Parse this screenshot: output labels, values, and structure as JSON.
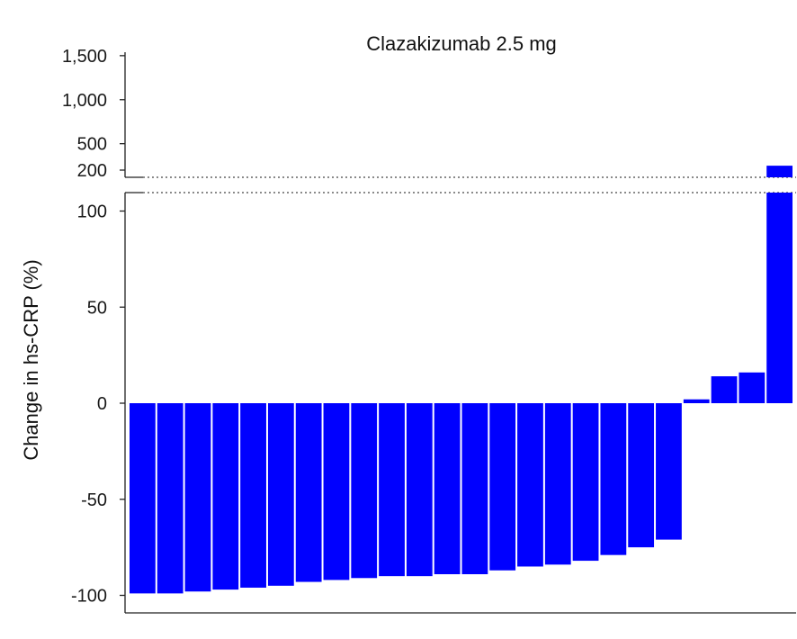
{
  "chart_data": {
    "type": "bar",
    "title": "Clazakizumab 2.5 mg",
    "ylabel": "Change in hs-CRP (%)",
    "xlabel": "",
    "y_axis_break": true,
    "ylim_lower": [
      -110,
      112
    ],
    "ylim_upper": [
      100,
      1600
    ],
    "yticks_lower": [
      "-100",
      "-50",
      "0",
      "50",
      "100"
    ],
    "yticks_lower_values": [
      -100,
      -50,
      0,
      50,
      100
    ],
    "yticks_upper": [
      "200",
      "500",
      "1,000",
      "1,500"
    ],
    "yticks_upper_values": [
      200,
      500,
      1000,
      1500
    ],
    "values": [
      -99,
      -99,
      -98,
      -97,
      -96,
      -95,
      -93,
      -92,
      -91,
      -90,
      -90,
      -89,
      -89,
      -87,
      -85,
      -84,
      -82,
      -79,
      -75,
      -71,
      2,
      14,
      16,
      250
    ],
    "bar_color": "#0000ff",
    "grid": false,
    "legend": "none"
  }
}
